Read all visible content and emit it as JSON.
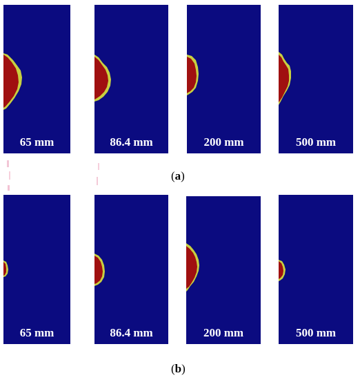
{
  "rows": [
    {
      "caption": {
        "open": "(",
        "letter": "a",
        "close": ")"
      },
      "panels": [
        {
          "label": "65 mm"
        },
        {
          "label": "86.4 mm"
        },
        {
          "label": "200 mm"
        },
        {
          "label": "500 mm"
        }
      ]
    },
    {
      "caption": {
        "open": "(",
        "letter": "b",
        "close": ")"
      },
      "panels": [
        {
          "label": "65 mm"
        },
        {
          "label": "86.4 mm"
        },
        {
          "label": "200 mm"
        },
        {
          "label": "500 mm"
        }
      ]
    }
  ],
  "colors": {
    "background_field": "#0b0b80",
    "damage_core": "#a01010",
    "damage_edge": "#c8d040",
    "outline": "#6fd0c0"
  }
}
